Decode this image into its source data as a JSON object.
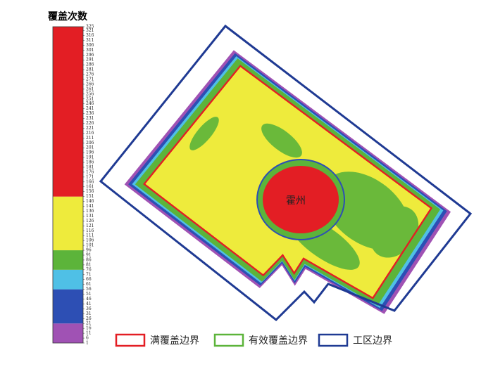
{
  "colorbar": {
    "title": "覆盖次数",
    "range": [
      1,
      325
    ],
    "ticks": [
      1,
      6,
      11,
      16,
      21,
      26,
      31,
      36,
      41,
      46,
      51,
      56,
      61,
      66,
      71,
      76,
      81,
      86,
      91,
      96,
      101,
      106,
      111,
      116,
      121,
      126,
      131,
      136,
      141,
      146,
      151,
      156,
      161,
      166,
      171,
      176,
      181,
      186,
      191,
      196,
      201,
      206,
      211,
      216,
      221,
      226,
      231,
      236,
      241,
      246,
      251,
      256,
      261,
      266,
      271,
      276,
      281,
      286,
      291,
      296,
      301,
      306,
      311,
      316,
      321,
      325
    ],
    "bands": [
      {
        "from": 1,
        "to": 21,
        "color": "#a052b4"
      },
      {
        "from": 21,
        "to": 56,
        "color": "#2d4fb4"
      },
      {
        "from": 56,
        "to": 76,
        "color": "#4fc0e6"
      },
      {
        "from": 76,
        "to": 96,
        "color": "#5cb43a"
      },
      {
        "from": 96,
        "to": 151,
        "color": "#eeeb3c"
      },
      {
        "from": 151,
        "to": 325,
        "color": "#e31e24"
      }
    ]
  },
  "map": {
    "city_label": "霍州"
  },
  "legend": {
    "items": [
      {
        "label": "满覆盖边界",
        "color": "#e31e24"
      },
      {
        "label": "有效覆盖边界",
        "color": "#5cb43a"
      },
      {
        "label": "工区边界",
        "color": "#1f3a93"
      }
    ]
  }
}
